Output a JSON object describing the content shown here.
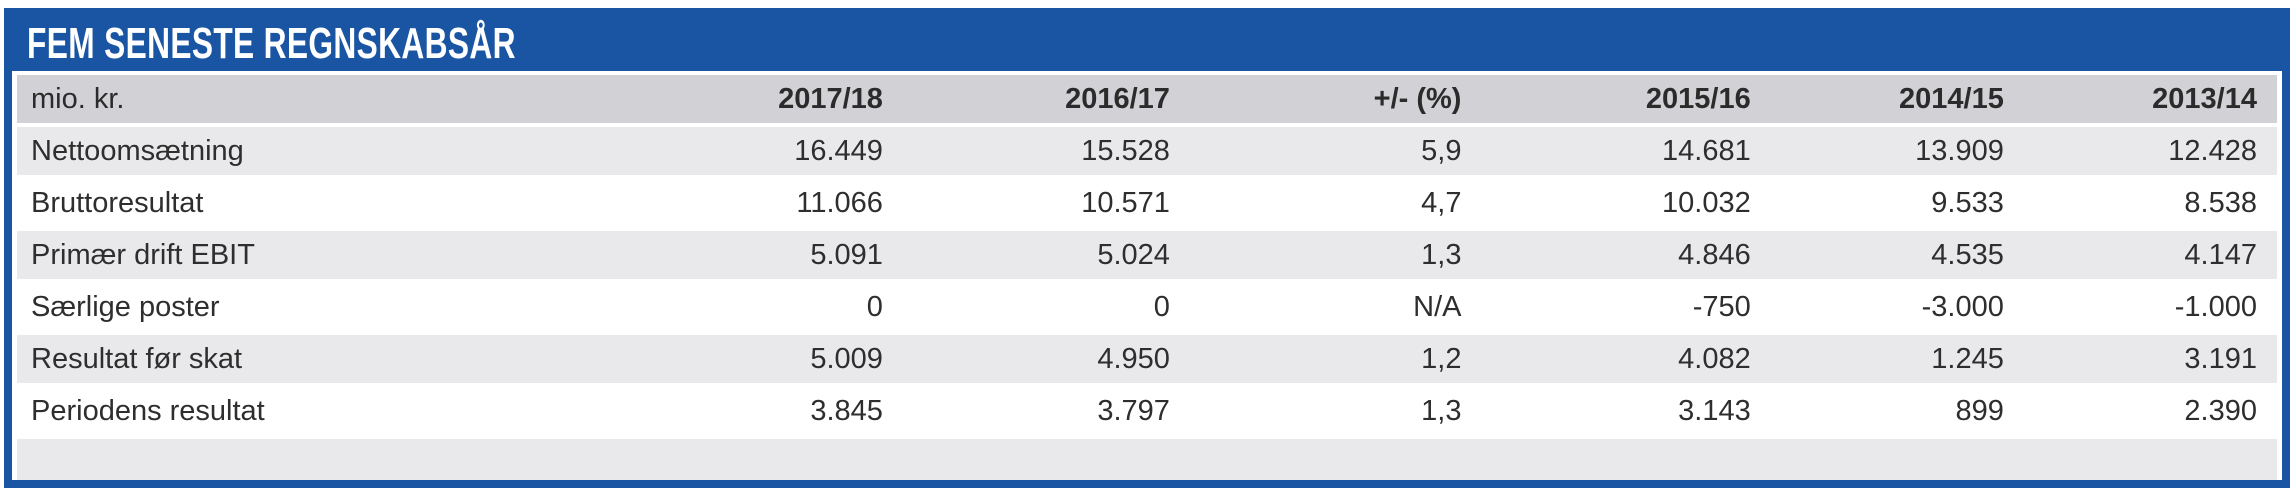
{
  "title_bar": {
    "title": "FEM SENESTE REGNSKABSÅR"
  },
  "colors": {
    "accent_blue": "#1a55a4",
    "header_row_bg": "#d2d2d6",
    "stripe_row_bg": "#e9e9eb",
    "plain_row_bg": "#ffffff",
    "body_text": "#2e2e2e",
    "title_text": "#ffffff"
  },
  "table": {
    "unit_label": "mio. kr.",
    "year_columns": [
      "2017/18",
      "2016/17",
      "+/- (%)",
      "2015/16",
      "2014/15",
      "2013/14"
    ],
    "rows": [
      {
        "label": "Nettoomsætning",
        "values": [
          "16.449",
          "15.528",
          "5,9",
          "14.681",
          "13.909",
          "12.428"
        ]
      },
      {
        "label": "Bruttoresultat",
        "values": [
          "11.066",
          "10.571",
          "4,7",
          "10.032",
          "9.533",
          "8.538"
        ]
      },
      {
        "label": "Primær drift EBIT",
        "values": [
          "5.091",
          "5.024",
          "1,3",
          "4.846",
          "4.535",
          "4.147"
        ]
      },
      {
        "label": "Særlige poster",
        "values": [
          "0",
          "0",
          "N/A",
          "-750",
          "-3.000",
          "-1.000"
        ]
      },
      {
        "label": "Resultat før skat",
        "values": [
          "5.009",
          "4.950",
          "1,2",
          "4.082",
          "1.245",
          "3.191"
        ]
      },
      {
        "label": "Periodens resultat",
        "values": [
          "3.845",
          "3.797",
          "1,3",
          "3.143",
          "899",
          "2.390"
        ]
      }
    ]
  },
  "chart_data": {
    "type": "table",
    "title": "FEM SENESTE REGNSKABSÅR",
    "unit": "mio. kr.",
    "columns": [
      "2017/18",
      "2016/17",
      "+/- (%)",
      "2015/16",
      "2014/15",
      "2013/14"
    ],
    "rows": [
      {
        "label": "Nettoomsætning",
        "values": [
          16449,
          15528,
          5.9,
          14681,
          13909,
          12428
        ]
      },
      {
        "label": "Bruttoresultat",
        "values": [
          11066,
          10571,
          4.7,
          10032,
          9533,
          8538
        ]
      },
      {
        "label": "Primær drift EBIT",
        "values": [
          5091,
          5024,
          1.3,
          4846,
          4535,
          4147
        ]
      },
      {
        "label": "Særlige poster",
        "values": [
          0,
          0,
          null,
          -750,
          -3000,
          -1000
        ]
      },
      {
        "label": "Resultat før skat",
        "values": [
          5009,
          4950,
          1.2,
          4082,
          1245,
          3191
        ]
      },
      {
        "label": "Periodens resultat",
        "values": [
          3845,
          3797,
          1.3,
          3143,
          899,
          2390
        ]
      }
    ],
    "notes": "Danish formatting: '.' thousands separator, ',' decimal separator; N/A shown for change on Særlige poster; stripe shading on alternate rows"
  }
}
